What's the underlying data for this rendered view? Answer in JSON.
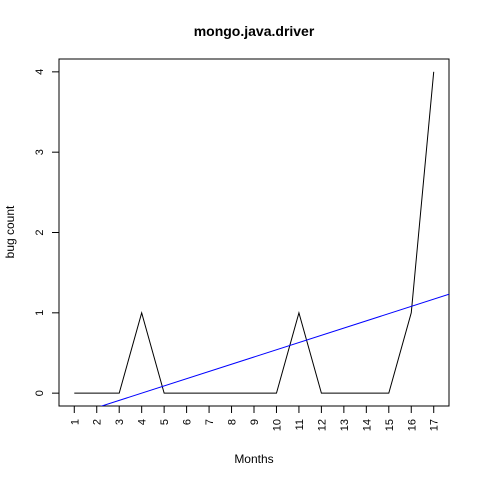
{
  "chart_data": {
    "type": "line",
    "title": "mongo.java.driver",
    "xlabel": "Months",
    "ylabel": "bug count",
    "x": [
      1,
      2,
      3,
      4,
      5,
      6,
      7,
      8,
      9,
      10,
      11,
      12,
      13,
      14,
      15,
      16,
      17
    ],
    "x_tick_labels": [
      "1",
      "2",
      "3",
      "4",
      "5",
      "6",
      "7",
      "8",
      "9",
      "10",
      "11",
      "12",
      "13",
      "14",
      "15",
      "16",
      "17"
    ],
    "y_tick_labels": [
      "0",
      "1",
      "2",
      "3",
      "4"
    ],
    "xlim": [
      0.32,
      17.68
    ],
    "ylim": [
      -0.16,
      4.16
    ],
    "grid": false,
    "series": [
      {
        "values": [
          0,
          0,
          0,
          1,
          0,
          0,
          0,
          0,
          0,
          0,
          1,
          0,
          0,
          0,
          0,
          1,
          4
        ],
        "color": "#000000"
      },
      {
        "kind": "trend",
        "intercept": -0.36,
        "slope": 0.09,
        "color": "#0000ff"
      }
    ]
  }
}
